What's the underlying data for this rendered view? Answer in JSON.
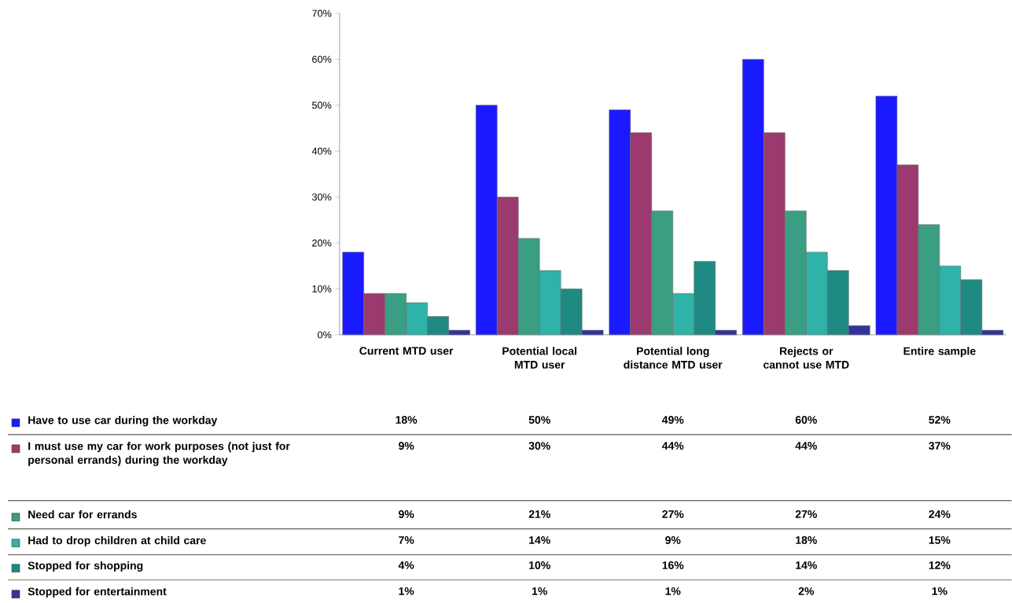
{
  "chart_data": {
    "type": "bar",
    "categories": [
      "Current MTD user",
      "Potential local MTD user",
      "Potential long distance MTD user",
      "Rejects or cannot use MTD",
      "Entire sample"
    ],
    "series": [
      {
        "name": "Have to use car during the workday",
        "color": "#1a1aff",
        "values": [
          18,
          50,
          49,
          60,
          52
        ],
        "value_labels": [
          "18%",
          "50%",
          "49%",
          "60%",
          "52%"
        ]
      },
      {
        "name": "I must use my car for work purposes (not just for personal errands) during the workday",
        "color": "#9b3a6e",
        "values": [
          9,
          30,
          44,
          44,
          37
        ],
        "value_labels": [
          "9%",
          "30%",
          "44%",
          "44%",
          "37%"
        ]
      },
      {
        "name": "Need car for errands",
        "color": "#3a9e82",
        "values": [
          9,
          21,
          27,
          27,
          24
        ],
        "value_labels": [
          "9%",
          "21%",
          "27%",
          "27%",
          "24%"
        ]
      },
      {
        "name": "Had to drop children at child care",
        "color": "#2fb2a8",
        "values": [
          7,
          14,
          9,
          18,
          15
        ],
        "value_labels": [
          "7%",
          "14%",
          "9%",
          "18%",
          "15%"
        ]
      },
      {
        "name": "Stopped for shopping",
        "color": "#1f8a82",
        "values": [
          4,
          10,
          16,
          14,
          12
        ],
        "value_labels": [
          "4%",
          "10%",
          "16%",
          "14%",
          "12%"
        ]
      },
      {
        "name": "Stopped for entertainment",
        "color": "#333399",
        "values": [
          1,
          1,
          1,
          2,
          1
        ],
        "value_labels": [
          "1%",
          "1%",
          "1%",
          "2%",
          "1%"
        ]
      }
    ],
    "ylim": [
      0,
      70
    ],
    "yticks": [
      {
        "value": 0,
        "label": "0%"
      },
      {
        "value": 10,
        "label": "10%"
      },
      {
        "value": 20,
        "label": "20%"
      },
      {
        "value": 30,
        "label": "30%"
      },
      {
        "value": 40,
        "label": "40%"
      },
      {
        "value": 50,
        "label": "50%"
      },
      {
        "value": 60,
        "label": "60%"
      },
      {
        "value": 70,
        "label": "70%"
      }
    ],
    "grid": false,
    "legend": "bottom"
  }
}
